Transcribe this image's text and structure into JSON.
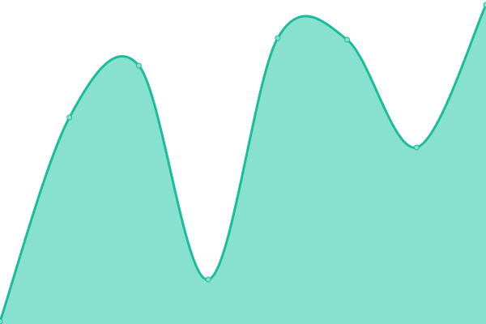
{
  "chart_data": {
    "type": "area",
    "x": [
      0,
      1,
      2,
      3,
      4,
      5,
      6,
      7
    ],
    "values": [
      3,
      255,
      319,
      55,
      353,
      351,
      218,
      394
    ],
    "ylim": [
      0,
      400
    ],
    "grid": false,
    "smooth": true,
    "show_points": true,
    "colors": {
      "line": "#1abc9c",
      "fill": "#88e0cf",
      "point_fill": "#88e0cf"
    }
  }
}
